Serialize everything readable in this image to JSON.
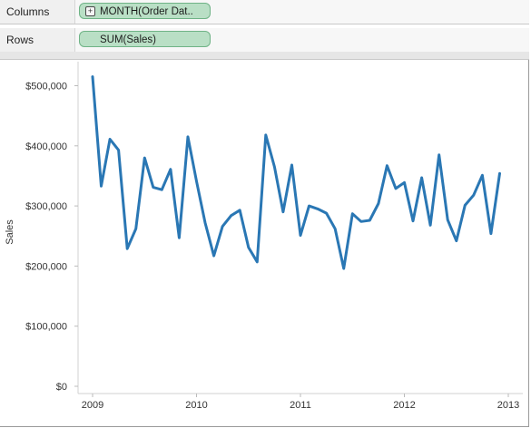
{
  "shelves": {
    "columns": {
      "label": "Columns",
      "pill": "MONTH(Order Dat..",
      "pill_expand": "+"
    },
    "rows": {
      "label": "Rows",
      "pill": "SUM(Sales)"
    }
  },
  "chart_data": {
    "type": "line",
    "title": "",
    "xlabel": "",
    "ylabel": "Sales",
    "ylim": [
      0,
      540000
    ],
    "yticks": [
      0,
      100000,
      200000,
      300000,
      400000,
      500000
    ],
    "ytick_labels": [
      "$0",
      "$100,000",
      "$200,000",
      "$300,000",
      "$400,000",
      "$500,000"
    ],
    "xticks": [
      "2009",
      "2010",
      "2011",
      "2012",
      "2013"
    ],
    "line_color": "#2a77b4",
    "grid": false,
    "series": [
      {
        "values": [
          515000,
          333000,
          411000,
          393000,
          229000,
          262000,
          380000,
          331000,
          327000,
          361000,
          247000,
          415000,
          341000,
          272000,
          217000,
          266000,
          284000,
          293000,
          231000,
          207000,
          418000,
          365000,
          290000,
          368000,
          251000,
          300000,
          295000,
          288000,
          262000,
          196000,
          287000,
          274000,
          276000,
          304000,
          367000,
          329000,
          339000,
          275000,
          347000,
          268000,
          385000,
          277000,
          242000,
          301000,
          318000,
          351000,
          254000,
          354000
        ]
      }
    ]
  }
}
